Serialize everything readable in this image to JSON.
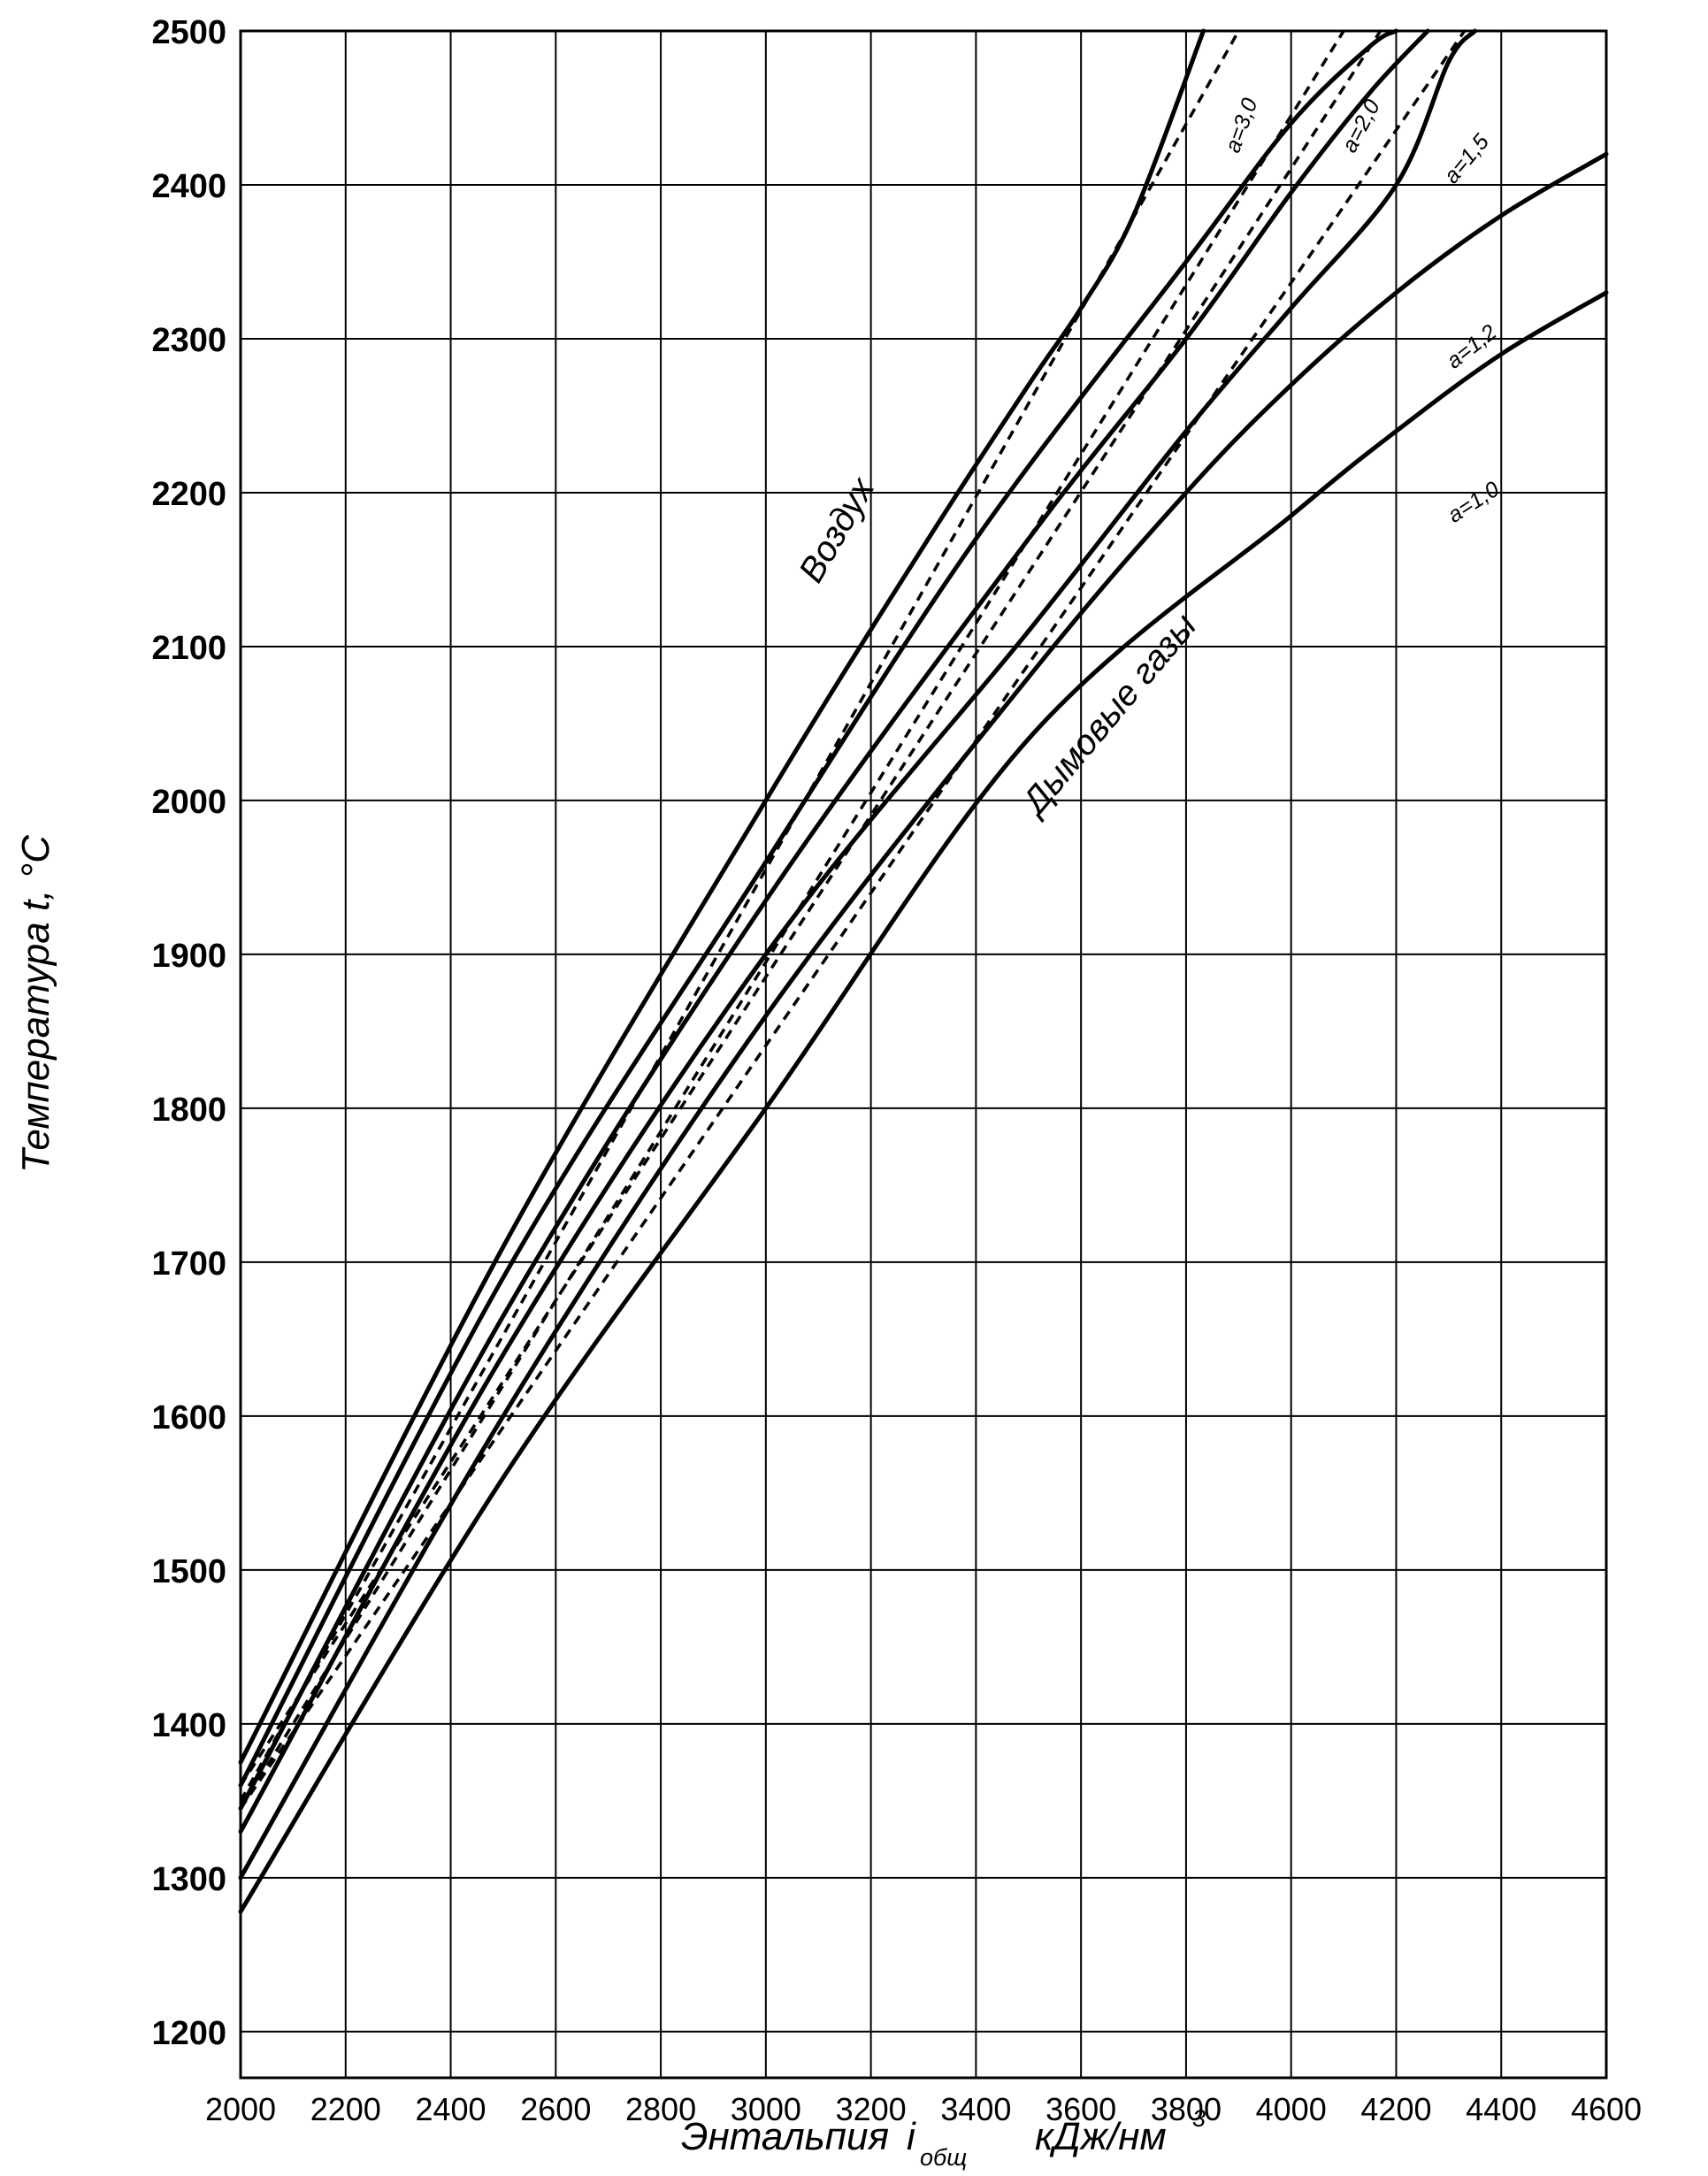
{
  "chart_data": {
    "type": "line",
    "title": "",
    "xlabel": "Энтальпия",
    "xlabel_symbol": "i",
    "xlabel_subscript": "общ",
    "xlabel_unit": "кДж/нм",
    "xlabel_unit_sup": "3",
    "ylabel": "Температура t, °C",
    "xlim": [
      2000,
      4600
    ],
    "ylim": [
      1170,
      2500
    ],
    "grid": true,
    "x_ticks": [
      "2000",
      "2200",
      "2400",
      "2600",
      "2800",
      "3000",
      "3200",
      "3400",
      "3600",
      "3800",
      "4000",
      "4200",
      "4400",
      "4600"
    ],
    "y_ticks": [
      "1200",
      "1300",
      "1400",
      "1500",
      "1600",
      "1700",
      "1800",
      "1900",
      "2000",
      "2100",
      "2200",
      "2300",
      "2400",
      "2500"
    ],
    "series": [
      {
        "name": "Воздух",
        "style": "solid",
        "points": [
          [
            2000,
            1375
          ],
          [
            2500,
            1710
          ],
          [
            3000,
            2000
          ],
          [
            3300,
            2165
          ],
          [
            3500,
            2270
          ],
          [
            3600,
            2320
          ],
          [
            3700,
            2380
          ],
          [
            3833,
            2500
          ]
        ]
      },
      {
        "name": "a=3,0",
        "style": "solid",
        "points": [
          [
            2000,
            1360
          ],
          [
            2500,
            1690
          ],
          [
            3000,
            1960
          ],
          [
            3400,
            2170
          ],
          [
            3800,
            2350
          ],
          [
            4000,
            2440
          ],
          [
            4150,
            2490
          ],
          [
            4200,
            2500
          ]
        ]
      },
      {
        "name": "a=2,0",
        "style": "solid",
        "points": [
          [
            2000,
            1345
          ],
          [
            2500,
            1665
          ],
          [
            3000,
            1935
          ],
          [
            3500,
            2170
          ],
          [
            3800,
            2300
          ],
          [
            4000,
            2395
          ],
          [
            4150,
            2460
          ],
          [
            4260,
            2500
          ]
        ]
      },
      {
        "name": "a=1,5",
        "style": "solid",
        "points": [
          [
            2000,
            1330
          ],
          [
            2500,
            1640
          ],
          [
            3000,
            1900
          ],
          [
            3500,
            2110
          ],
          [
            3800,
            2240
          ],
          [
            4000,
            2320
          ],
          [
            4200,
            2400
          ],
          [
            4300,
            2480
          ],
          [
            4350,
            2500
          ]
        ]
      },
      {
        "name": "a=1,2",
        "style": "solid",
        "points": [
          [
            2000,
            1300
          ],
          [
            2500,
            1600
          ],
          [
            3000,
            1860
          ],
          [
            3500,
            2080
          ],
          [
            3800,
            2200
          ],
          [
            4000,
            2270
          ],
          [
            4200,
            2330
          ],
          [
            4400,
            2380
          ],
          [
            4600,
            2420
          ]
        ]
      },
      {
        "name": "a=1,0",
        "style": "solid",
        "points": [
          [
            2000,
            1278
          ],
          [
            2500,
            1560
          ],
          [
            3000,
            1800
          ],
          [
            3500,
            2040
          ],
          [
            4000,
            2185
          ],
          [
            4200,
            2240
          ],
          [
            4400,
            2290
          ],
          [
            4600,
            2330
          ]
        ]
      },
      {
        "name": "",
        "style": "dashed",
        "points": [
          [
            2000,
            1350
          ],
          [
            3900,
            2500
          ]
        ]
      },
      {
        "name": "",
        "style": "dashed",
        "points": [
          [
            2000,
            1345
          ],
          [
            4100,
            2500
          ]
        ]
      },
      {
        "name": "",
        "style": "dashed",
        "points": [
          [
            2000,
            1360
          ],
          [
            4170,
            2500
          ]
        ]
      },
      {
        "name": "",
        "style": "dashed",
        "points": [
          [
            2000,
            1345
          ],
          [
            4330,
            2500
          ]
        ]
      }
    ],
    "annotations": [
      {
        "text": "Воздух",
        "x": 3100,
        "y": 2140,
        "angle": -60,
        "size": "big"
      },
      {
        "text": "Дымовые газы",
        "x": 3520,
        "y": 1990,
        "angle": -50,
        "size": "big"
      },
      {
        "text": "a=3,0",
        "x": 3900,
        "y": 2420,
        "angle": -70,
        "size": "small"
      },
      {
        "text": "a=2,0",
        "x": 4120,
        "y": 2420,
        "angle": -62,
        "size": "small"
      },
      {
        "text": "a=1,5",
        "x": 4310,
        "y": 2400,
        "angle": -50,
        "size": "small"
      },
      {
        "text": "a=1,2",
        "x": 4310,
        "y": 2280,
        "angle": -38,
        "size": "small"
      },
      {
        "text": "a=1,0",
        "x": 4310,
        "y": 2180,
        "angle": -33,
        "size": "small"
      }
    ]
  }
}
